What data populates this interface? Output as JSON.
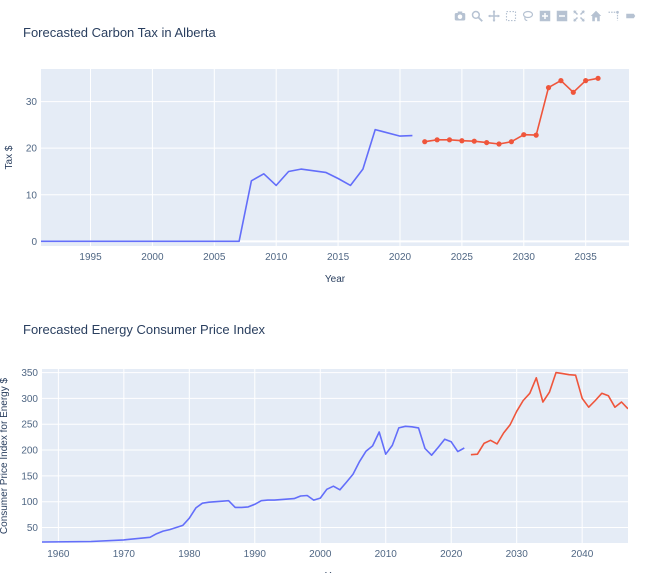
{
  "toolbar": {
    "icons": [
      "camera-icon",
      "zoom-icon",
      "pan-icon",
      "box-select-icon",
      "lasso-icon",
      "zoom-in-icon",
      "zoom-out-icon",
      "autoscale-icon",
      "home-icon",
      "spike-icon",
      "hover-icon"
    ],
    "icon_color": "#b6c2d2"
  },
  "chart_data": [
    {
      "type": "line",
      "title": "Forecasted Carbon Tax in Alberta",
      "xlabel": "Year",
      "ylabel": "Tax $",
      "xlim": [
        1991,
        2038.5
      ],
      "ylim": [
        -1,
        37
      ],
      "xticks": [
        1995,
        2000,
        2005,
        2010,
        2015,
        2020,
        2025,
        2030,
        2035
      ],
      "yticks": [
        0,
        10,
        20,
        30
      ],
      "series": [
        {
          "color": "#636efa",
          "markers": false,
          "x": [
            1991,
            2007,
            2008,
            2009,
            2010,
            2011,
            2012,
            2014,
            2015,
            2016,
            2017,
            2018,
            2020,
            2021
          ],
          "y": [
            0,
            0,
            13,
            14.5,
            12,
            15,
            15.5,
            14.8,
            13.5,
            12,
            15.5,
            24,
            22.6,
            22.7
          ]
        },
        {
          "color": "#ef553b",
          "markers": true,
          "x": [
            2022,
            2023,
            2024,
            2025,
            2026,
            2027,
            2028,
            2029,
            2030,
            2031,
            2032,
            2033,
            2034,
            2035,
            2036
          ],
          "y": [
            21.4,
            21.8,
            21.8,
            21.6,
            21.5,
            21.2,
            20.9,
            21.4,
            22.9,
            22.8,
            33,
            34.5,
            32,
            34.5,
            35
          ]
        }
      ],
      "style": {
        "plot_bg": "#e5ecf6",
        "grid": "#ffffff",
        "zeroline": "#ffffff"
      }
    },
    {
      "type": "line",
      "title": "Forecasted Energy Consumer Price Index",
      "xlabel": "Year",
      "ylabel": "Consumer Price Index for Energy $",
      "xlim": [
        1957.5,
        2047
      ],
      "ylim": [
        20,
        357
      ],
      "xticks": [
        1960,
        1970,
        1980,
        1990,
        2000,
        2010,
        2020,
        2030,
        2040
      ],
      "yticks": [
        50,
        100,
        150,
        200,
        250,
        300,
        350
      ],
      "series": [
        {
          "color": "#636efa",
          "markers": false,
          "x": [
            1957.5,
            1965,
            1970,
            1974,
            1975,
            1976,
            1977,
            1978,
            1979,
            1980,
            1981,
            1982,
            1983,
            1984,
            1985,
            1986,
            1987,
            1988,
            1989,
            1990,
            1991,
            1992,
            1993,
            1994,
            1995,
            1996,
            1997,
            1998,
            1999,
            2000,
            2001,
            2002,
            2003,
            2004,
            2005,
            2006,
            2007,
            2008,
            2009,
            2010,
            2011,
            2012,
            2013,
            2014,
            2015,
            2016,
            2017,
            2018,
            2019,
            2020,
            2021,
            2022
          ],
          "y": [
            22,
            23,
            26,
            31,
            38,
            43,
            46,
            50,
            54,
            68,
            88,
            97,
            99,
            100,
            101,
            102,
            89,
            89,
            90,
            95,
            102,
            103,
            103,
            104,
            105,
            106,
            111,
            112,
            103,
            107,
            124,
            130,
            123,
            138,
            153,
            178,
            198,
            208,
            235,
            192,
            209,
            243,
            246,
            245,
            243,
            203,
            190,
            205,
            221,
            216,
            197,
            204
          ]
        },
        {
          "color": "#ef553b",
          "markers": false,
          "x": [
            2023,
            2024,
            2025,
            2026,
            2027,
            2028,
            2029,
            2030,
            2031,
            2032,
            2033,
            2034,
            2035,
            2036,
            2037,
            2038,
            2039,
            2040,
            2041,
            2042,
            2043,
            2044,
            2045,
            2046,
            2047
          ],
          "y": [
            191,
            192,
            213,
            219,
            212,
            233,
            249,
            275,
            296,
            310,
            340,
            293,
            312,
            350,
            348,
            346,
            345,
            300,
            283,
            296,
            310,
            305,
            283,
            293,
            280
          ]
        }
      ],
      "style": {
        "plot_bg": "#e5ecf6",
        "grid": "#ffffff",
        "zeroline": "#ffffff"
      }
    }
  ]
}
